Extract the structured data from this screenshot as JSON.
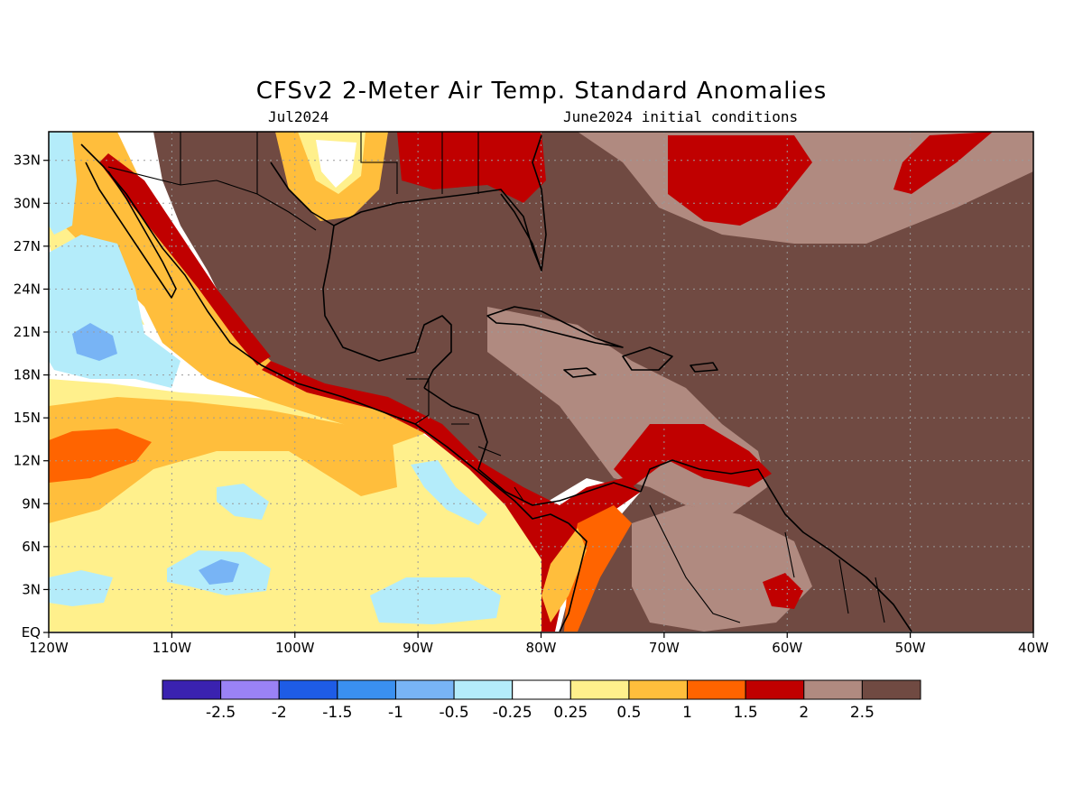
{
  "title": "CFSv2 2-Meter Air Temp. Standard Anomalies",
  "valid_month": "Jul2024",
  "init_conditions": "June2024 initial conditions",
  "map": {
    "lon_range": [
      -120,
      -40
    ],
    "lat_range": [
      0,
      35
    ],
    "grid": true
  },
  "axes": {
    "x_ticks": [
      "120W",
      "110W",
      "100W",
      "90W",
      "80W",
      "70W",
      "60W",
      "50W",
      "40W"
    ],
    "y_ticks": [
      "EQ",
      "3N",
      "6N",
      "9N",
      "12N",
      "15N",
      "18N",
      "21N",
      "24N",
      "27N",
      "30N",
      "33N"
    ]
  },
  "colorbar": {
    "colors": [
      "#3a22b0",
      "#9a82f5",
      "#1e5ce6",
      "#3a90f0",
      "#78b4f5",
      "#b4ecfa",
      "#ffffff",
      "#fff08c",
      "#ffbe3c",
      "#ff6400",
      "#c00000",
      "#b08a80",
      "#704a42"
    ],
    "labels": [
      "-2.5",
      "-2",
      "-1.5",
      "-1",
      "-0.5",
      "-0.25",
      "0.25",
      "0.5",
      "1",
      "1.5",
      "2",
      "2.5"
    ]
  },
  "colors": {
    "land_anomaly": "#704a42",
    "high_anomaly": "#c00000",
    "ocean_neutral": "#ffffff"
  }
}
